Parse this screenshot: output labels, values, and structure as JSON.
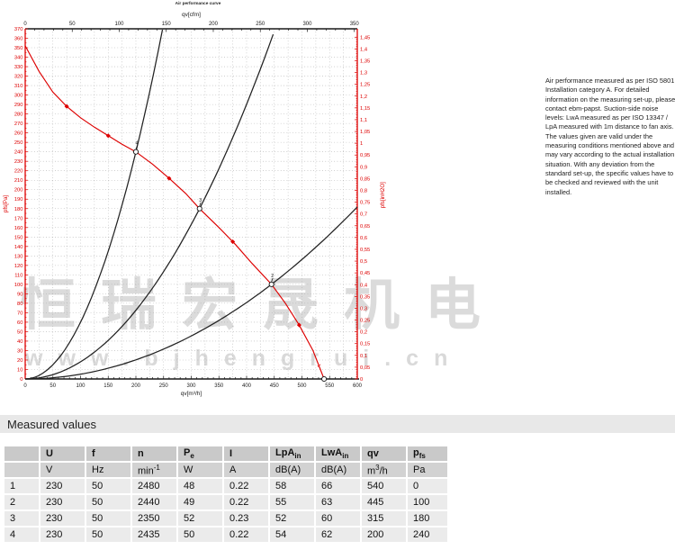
{
  "watermark": {
    "line1": "恒瑞宏晟机电",
    "line2": "www.bjhengrui.cn"
  },
  "chart": {
    "micro_title": "Air performance curve",
    "accent_color": "#dd0000"
  },
  "chart_data": {
    "type": "line",
    "title": "Air performance curve",
    "x_bottom_axis": {
      "label": "qv[m³/h]",
      "min": 0,
      "max": 600,
      "major_tick": 50,
      "minor_tick": 10,
      "color": "#1a1a1a"
    },
    "x_top_axis": {
      "label": "qv[cfm]",
      "min": 0,
      "max": 350,
      "major_tick": 50,
      "minor_tick": 10,
      "color": "#1a1a1a"
    },
    "y_left_axis": {
      "label": "pfs[Pa]",
      "min": 0,
      "max": 370,
      "major_tick": 10,
      "color": "#dd0000"
    },
    "y_right_axis": {
      "label": "pfs[inH2O]",
      "min": 0,
      "max": 1.45,
      "major_tick": 0.05,
      "minor_tick": 0.01,
      "color": "#dd0000"
    },
    "grid": {
      "on": true,
      "x_step": 25,
      "y_step": 10
    },
    "series": [
      {
        "name": "fan-pressure-curve",
        "color": "#dd0000",
        "points": [
          [
            0,
            352
          ],
          [
            25,
            325
          ],
          [
            50,
            303
          ],
          [
            75,
            288
          ],
          [
            100,
            276
          ],
          [
            125,
            266
          ],
          [
            150,
            257
          ],
          [
            175,
            248
          ],
          [
            200,
            240
          ],
          [
            230,
            227
          ],
          [
            260,
            212
          ],
          [
            290,
            196
          ],
          [
            315,
            180
          ],
          [
            350,
            160
          ],
          [
            380,
            142
          ],
          [
            410,
            122
          ],
          [
            445,
            100
          ],
          [
            470,
            80
          ],
          [
            495,
            57
          ],
          [
            520,
            30
          ],
          [
            540,
            0
          ]
        ],
        "marker_points": [
          [
            75,
            288
          ],
          [
            150,
            257
          ],
          [
            260,
            212
          ],
          [
            375,
            145
          ],
          [
            495,
            57
          ]
        ]
      },
      {
        "name": "system-curve-4",
        "color": "#222222",
        "formula": "p=k*qv^2",
        "k": 0.006,
        "q_end": 248
      },
      {
        "name": "system-curve-3",
        "color": "#222222",
        "formula": "p=k*qv^2",
        "k": 0.001814,
        "q_end": 451
      },
      {
        "name": "system-curve-2",
        "color": "#222222",
        "formula": "p=k*qv^2",
        "k": 0.000505,
        "q_end": 600
      }
    ],
    "operating_points": [
      {
        "label": "4",
        "qv": 200,
        "p": 240
      },
      {
        "label": "3",
        "qv": 315,
        "p": 180
      },
      {
        "label": "2",
        "qv": 445,
        "p": 100
      },
      {
        "label": "1",
        "qv": 540,
        "p": 0
      }
    ],
    "legend_position": "none"
  },
  "info": {
    "text": "Air performance measured as per ISO 5801.\nInstallation category A. For detailed\ninformation on the measuring set-up, please\ncontact ebm-papst. Suction-side noise\nlevels: LwA measured as per ISO 13347 /\nLpA measured with 1m distance to fan axis.\nThe values given are valid under the\nmeasuring conditions mentioned above and\nmay vary according to the actual installation\nsituation. With any deviation from the\nstandard set-up, the specific values have to\nbe checked and reviewed with the unit\ninstalled."
  },
  "table": {
    "section_title": "Measured values",
    "headers": [
      "",
      "U",
      "f",
      "n",
      "P_{e}",
      "I",
      "LpA_{in}",
      "LwA_{in}",
      "qv",
      "p_{fs}"
    ],
    "units": [
      "",
      "V",
      "Hz",
      "min^{-1}",
      "W",
      "A",
      "dB(A)",
      "dB(A)",
      "m^{3}/h",
      "Pa"
    ],
    "rows": [
      [
        "1",
        "230",
        "50",
        "2480",
        "48",
        "0.22",
        "58",
        "66",
        "540",
        "0"
      ],
      [
        "2",
        "230",
        "50",
        "2440",
        "49",
        "0.22",
        "55",
        "63",
        "445",
        "100"
      ],
      [
        "3",
        "230",
        "50",
        "2350",
        "52",
        "0.23",
        "52",
        "60",
        "315",
        "180"
      ],
      [
        "4",
        "230",
        "50",
        "2435",
        "50",
        "0.22",
        "54",
        "62",
        "200",
        "240"
      ]
    ]
  }
}
